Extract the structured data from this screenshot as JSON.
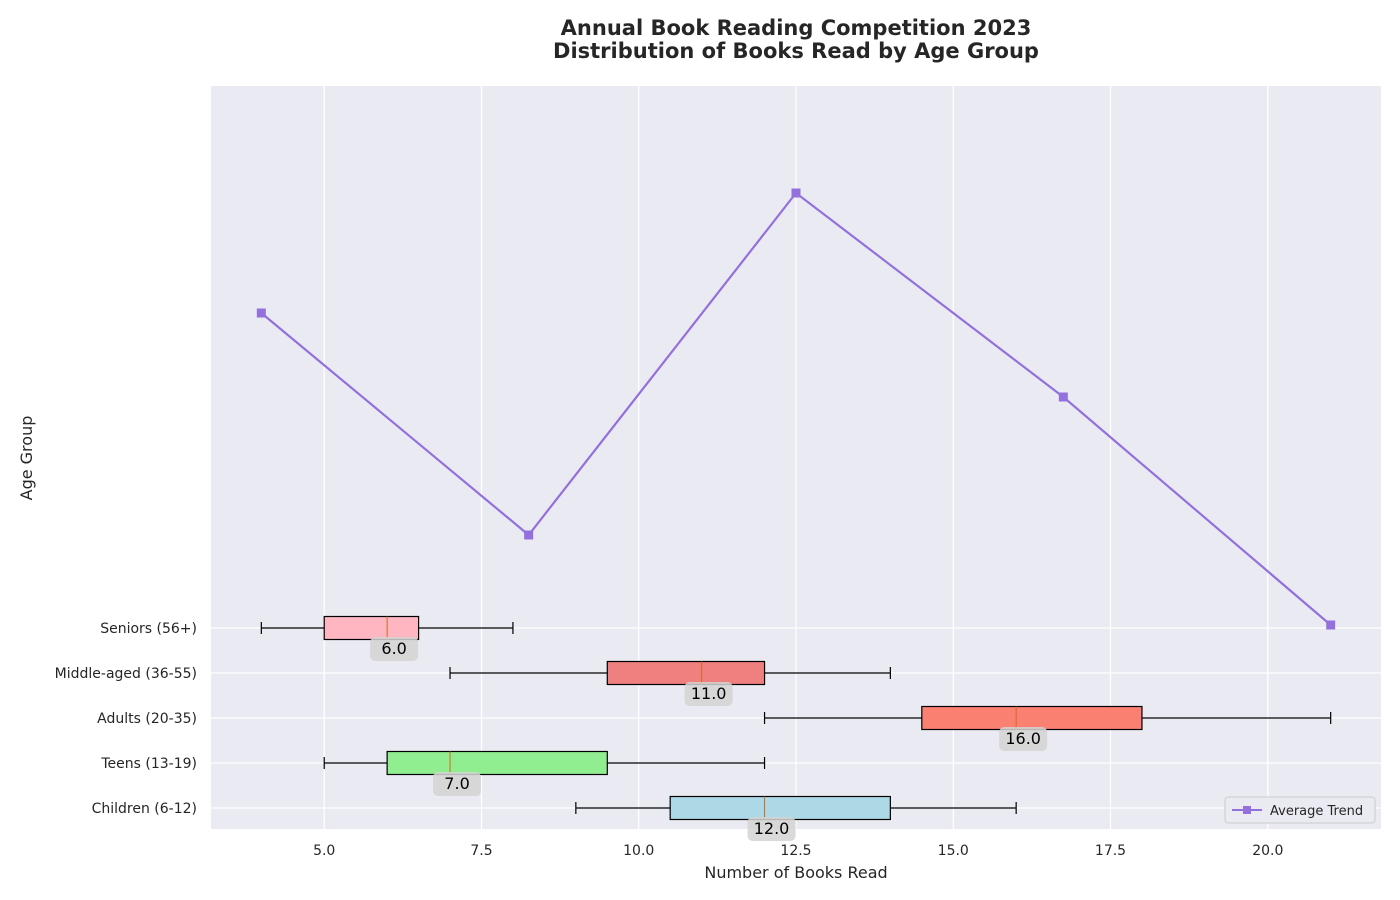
{
  "chart_data": {
    "type": "box",
    "title_lines": [
      "Annual Book Reading Competition 2023",
      "Distribution of Books Read by Age Group"
    ],
    "xlabel": "Number of Books Read",
    "ylabel": "Age Group",
    "xlim": [
      3.2,
      21.8
    ],
    "xticks": [
      5.0,
      7.5,
      10.0,
      12.5,
      15.0,
      17.5,
      20.0
    ],
    "xtick_labels": [
      "5.0",
      "7.5",
      "10.0",
      "12.5",
      "15.0",
      "17.5",
      "20.0"
    ],
    "grid": true,
    "background": "#EAEAF2",
    "groups": [
      {
        "label": "Children (6-12)",
        "whisker_low": 9,
        "q1": 10.5,
        "median": 12,
        "q3": 14,
        "whisker_high": 16,
        "median_label": "12.0",
        "color": "#ADD8E6"
      },
      {
        "label": "Teens (13-19)",
        "whisker_low": 5,
        "q1": 6,
        "median": 7,
        "q3": 9.5,
        "whisker_high": 12,
        "median_label": "7.0",
        "color": "#90EE90"
      },
      {
        "label": "Adults (20-35)",
        "whisker_low": 12,
        "q1": 14.5,
        "median": 16,
        "q3": 18,
        "whisker_high": 21,
        "median_label": "16.0",
        "color": "#FA8072"
      },
      {
        "label": "Middle-aged (36-55)",
        "whisker_low": 7,
        "q1": 9.5,
        "median": 11,
        "q3": 12,
        "whisker_high": 14,
        "median_label": "11.0",
        "color": "#F08080"
      },
      {
        "label": "Seniors (56+)",
        "whisker_low": 4,
        "q1": 5,
        "median": 6,
        "q3": 6.5,
        "whisker_high": 8,
        "median_label": "6.0",
        "color": "#FFB6C1"
      }
    ],
    "trend": {
      "name": "Average Trend",
      "color": "#9370DB",
      "marker": "square",
      "x": [
        4,
        8.25,
        12.5,
        16.75,
        21
      ],
      "y": [
        8.6,
        4.9,
        10.6,
        7.2,
        3.4
      ]
    },
    "legend": {
      "position": "lower-right",
      "entries": [
        "Average Trend"
      ]
    }
  }
}
